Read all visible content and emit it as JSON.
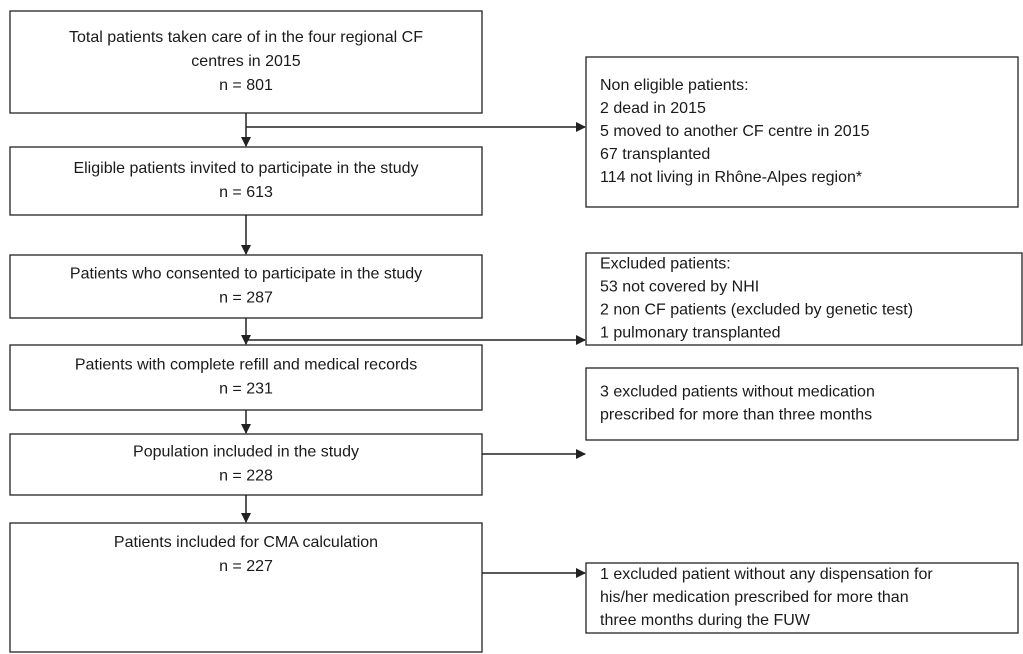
{
  "nodes": [
    {
      "lines": [
        "Total patients taken care of in the four regional CF",
        "centres in 2015",
        "n = 801"
      ]
    },
    {
      "lines": [
        "Eligible patients invited to participate in the study",
        "n = 613"
      ]
    },
    {
      "lines": [
        "Patients who consented to participate in the study",
        "n = 287"
      ]
    },
    {
      "lines": [
        "Patients with complete refill and medical records",
        "n = 231"
      ]
    },
    {
      "lines": [
        "Population included in the study",
        "n = 228"
      ]
    },
    {
      "lines": [
        "Patients included for CMA calculation",
        "n = 227"
      ]
    }
  ],
  "exclusions": [
    {
      "lines": [
        "Non eligible patients:",
        "2 dead in 2015",
        "5 moved to another CF centre in 2015",
        "67 transplanted",
        "114 not living in Rhône-Alpes region*"
      ]
    },
    {
      "lines": [
        "Excluded patients:",
        "53 not covered by NHI",
        "2 non CF patients (excluded by genetic test)",
        "1 pulmonary transplanted"
      ]
    },
    {
      "lines": [
        "3 excluded patients without medication",
        "prescribed for more than three months"
      ]
    },
    {
      "lines": [
        "1 excluded patient without any dispensation for",
        "his/her medication prescribed for more than",
        "three months during the FUW"
      ]
    }
  ]
}
